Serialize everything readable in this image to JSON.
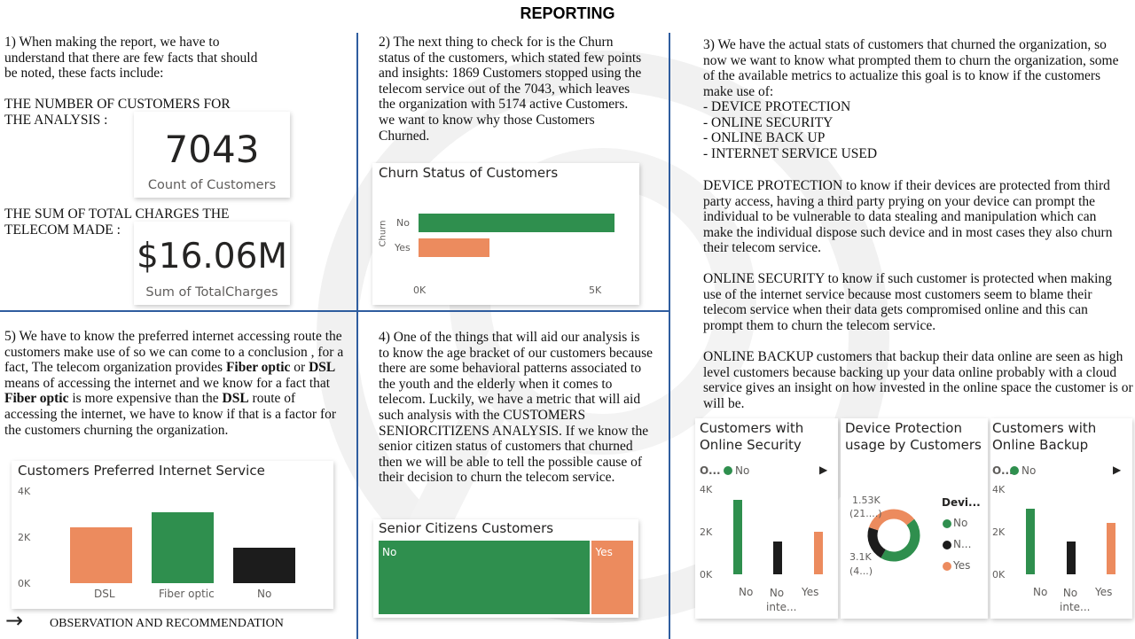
{
  "title": "REPORTING",
  "section1": {
    "intro": "1)    When making the report, we have to understand that there are few facts that should be noted, these facts include:",
    "count_label": "THE NUMBER OF CUSTOMERS FOR THE ANALYSIS :",
    "count_value": "7043",
    "count_caption": "Count of Customers",
    "sum_label": "THE SUM OF TOTAL CHARGES THE TELECOM MADE :",
    "sum_value": "$16.06M",
    "sum_caption": "Sum of TotalCharges"
  },
  "section2": {
    "text": "2)    The next thing to check for is the Churn status of the customers, which stated few points and insights: 1869 Customers stopped using the telecom service out of the 7043, which leaves the organization with 5174 active Customers. we want to know why those Customers Churned.",
    "chart_title": "Churn Status of Customers"
  },
  "section3": {
    "intro": "3)     We have the actual stats of customers that churned the organization, so now we want to know what prompted them to churn the organization, some of the available  metrics to actualize this goal is to know if the customers make use of:",
    "list": [
      "-  DEVICE PROTECTION",
      "-  ONLINE SECURITY",
      "-  ONLINE BACK UP",
      "-  INTERNET SERVICE USED"
    ],
    "p_device": "DEVICE PROTECTION to know if their devices are protected from third party access, having a third party prying on your device can prompt the individual to be vulnerable to data stealing and manipulation which can make the individual dispose such device and in most cases they also churn their telecom service.",
    "p_security": "ONLINE SECURITY to know if such customer is protected when making use of the internet service because most customers seem to blame their telecom service when their data gets compromised online and this can prompt them to churn the telecom service.",
    "p_backup": "ONLINE BACKUP customers that backup their data online are seen as high level customers because backing up your data online probably with a cloud service gives an insight on how invested in the online space the customer is or will be."
  },
  "section4": {
    "text": "4)    One of the things that will aid our analysis is to know the age bracket of our customers because there are some behavioral patterns associated to the youth and the elderly when it comes to telecom. Luckily, we have a metric that will aid such analysis with the CUSTOMERS SENIORCITIZENS ANALYSIS. If we know the senior citizen status of customers that churned then we will be able to tell the possible cause of their decision to churn the telecom service.",
    "chart_title": "Senior Citizens Customers"
  },
  "section5": {
    "text_a": "5)    We have to know the preferred internet accessing route the customers make use of so we can come to a conclusion , for a fact, The telecom organization provides ",
    "bold_fiber": "Fiber optic",
    "text_or": " or ",
    "bold_dsl": "DSL",
    "text_b": " means of accessing the internet and we know for a fact that ",
    "bold_fiber2": "Fiber optic",
    "text_c": " is more expensive than the ",
    "bold_dsl2": "DSL",
    "text_d": " route of accessing the internet, we have to know if that is a factor for the customers churning the organization.",
    "chart_title": "Customers Preferred Internet Service"
  },
  "footer": {
    "arrow": "→",
    "label": "OBSERVATION AND RECOMMENDATION"
  },
  "small_charts": {
    "security_title_1": "Customers with",
    "security_title_2": "Online Security",
    "security_legend_prefix": "O...",
    "security_legend_item": "No",
    "device_title_1": "Device Protection",
    "device_title_2": "usage by Customers",
    "device_legend_title": "Devi...",
    "device_legend_1": "No",
    "device_legend_2": "N...",
    "device_legend_3": "Yes",
    "device_label_top_1": "1.53K",
    "device_label_top_2": "(21....)",
    "device_label_bot_1": "3.1K",
    "device_label_bot_2": "(4...)",
    "backup_title_1": "Customers with",
    "backup_title_2": "Online Backup",
    "backup_legend_prefix": "O...",
    "backup_legend_item": "No",
    "play_icon": "▶"
  },
  "colors": {
    "green": "#2f8f4e",
    "orange": "#ec8b5e",
    "black": "#1c1c1c",
    "divider": "#2f5d9f"
  },
  "chart_data": [
    {
      "type": "bar",
      "orientation": "horizontal",
      "title": "Churn Status of Customers",
      "ylabel": "Churn",
      "categories": [
        "No",
        "Yes"
      ],
      "values": [
        5174,
        1869
      ],
      "colors": [
        "#2f8f4e",
        "#ec8b5e"
      ],
      "xlim": [
        0,
        5500
      ],
      "ticks": [
        "0K",
        "5K"
      ]
    },
    {
      "type": "bar",
      "title": "Customers Preferred Internet Service",
      "categories": [
        "DSL",
        "Fiber optic",
        "No"
      ],
      "values": [
        2421,
        3096,
        1526
      ],
      "colors": [
        "#ec8b5e",
        "#2f8f4e",
        "#1c1c1c"
      ],
      "ylim": [
        0,
        4000
      ],
      "ticks": [
        "0K",
        "2K",
        "4K"
      ]
    },
    {
      "type": "bar",
      "title": "Senior Citizens Customers",
      "orientation": "stacked-horizontal",
      "categories": [
        "No",
        "Yes"
      ],
      "values": [
        5901,
        1142
      ],
      "colors": [
        "#2f8f4e",
        "#ec8b5e"
      ]
    },
    {
      "type": "bar",
      "title": "Customers with Online Security",
      "categories": [
        "No",
        "No inte...",
        "Yes"
      ],
      "values": [
        3498,
        1526,
        2019
      ],
      "colors": [
        "#2f8f4e",
        "#1c1c1c",
        "#ec8b5e"
      ],
      "ylim": [
        0,
        4000
      ],
      "ticks": [
        "0K",
        "2K",
        "4K"
      ]
    },
    {
      "type": "pie",
      "title": "Device Protection usage by Customers",
      "legend": "right",
      "categories": [
        "No",
        "No internet service",
        "Yes"
      ],
      "values": [
        3095,
        1526,
        2422
      ],
      "colors": [
        "#2f8f4e",
        "#1c1c1c",
        "#ec8b5e"
      ]
    },
    {
      "type": "bar",
      "title": "Customers with Online Backup",
      "categories": [
        "No",
        "No inte...",
        "Yes"
      ],
      "values": [
        3088,
        1526,
        2429
      ],
      "colors": [
        "#2f8f4e",
        "#1c1c1c",
        "#ec8b5e"
      ],
      "ylim": [
        0,
        4000
      ],
      "ticks": [
        "0K",
        "2K",
        "4K"
      ]
    }
  ]
}
